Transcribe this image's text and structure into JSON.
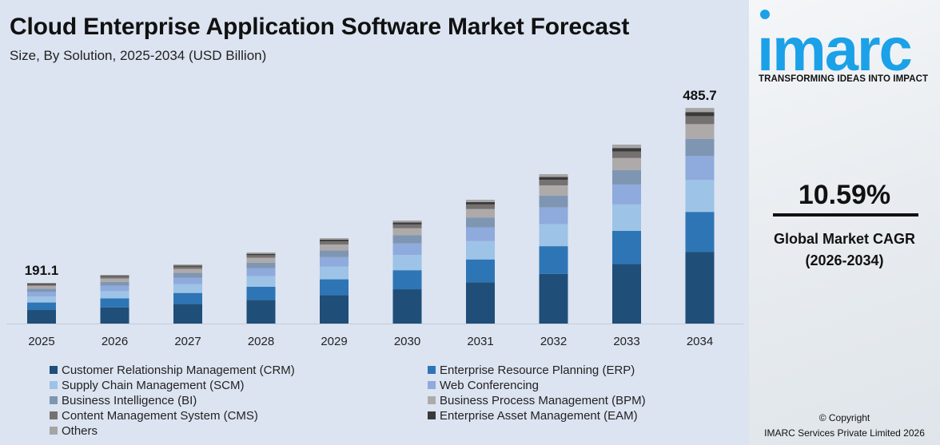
{
  "title": "Cloud Enterprise Application Software Market Forecast",
  "subtitle": "Size, By Solution, 2025-2034 (USD Billion)",
  "brand": {
    "name": "imarc",
    "tagline": "TRANSFORMING IDEAS INTO IMPACT",
    "color": "#1ba1e8"
  },
  "cagr": {
    "value": "10.59%",
    "label_line1": "Global Market CAGR",
    "label_line2": "(2026-2034)"
  },
  "copyright": {
    "line1": "© Copyright",
    "line2": "IMARC Services Private Limited 2026"
  },
  "chart_data": {
    "type": "bar",
    "stacked": true,
    "categories": [
      "2025",
      "2026",
      "2027",
      "2028",
      "2029",
      "2030",
      "2031",
      "2032",
      "2033",
      "2034"
    ],
    "totals": [
      191.1,
      204.6,
      222.1,
      242.3,
      266.5,
      296.1,
      331.1,
      374.2,
      424.0,
      485.7
    ],
    "total_labels": {
      "2025": "191.1",
      "2034": "485.7"
    },
    "segment_shares_approx": [
      0.333,
      0.185,
      0.148,
      0.111,
      0.08,
      0.068,
      0.037,
      0.019,
      0.019
    ],
    "series": [
      {
        "name": "Customer Relationship Management (CRM)",
        "color": "#1f4e79"
      },
      {
        "name": "Enterprise Resource Planning (ERP)",
        "color": "#2e75b6"
      },
      {
        "name": "Supply Chain Management (SCM)",
        "color": "#9dc3e6"
      },
      {
        "name": "Web Conferencing",
        "color": "#8faadc"
      },
      {
        "name": "Business Intelligence (BI)",
        "color": "#7f96b2"
      },
      {
        "name": "Business Process Management (BPM)",
        "color": "#aeaaaa"
      },
      {
        "name": "Content Management System (CMS)",
        "color": "#767171"
      },
      {
        "name": "Enterprise Asset Management (EAM)",
        "color": "#3a3a3a"
      },
      {
        "name": "Others",
        "color": "#a5a5a5"
      }
    ],
    "grid": false,
    "legend": "bottom"
  }
}
